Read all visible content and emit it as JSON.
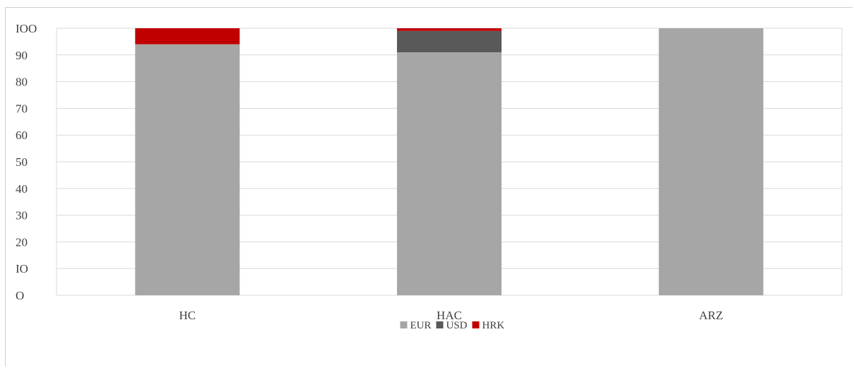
{
  "chart_data": {
    "type": "bar",
    "stacked": true,
    "categories": [
      "HC",
      "HAC",
      "ARZ"
    ],
    "series": [
      {
        "name": "EUR",
        "color": "#a6a6a6",
        "values": [
          94,
          91,
          100
        ]
      },
      {
        "name": "USD",
        "color": "#595959",
        "values": [
          0,
          8,
          0
        ]
      },
      {
        "name": "HRK",
        "color": "#c00000",
        "values": [
          6,
          1,
          0
        ]
      }
    ],
    "ylim": [
      0,
      100
    ],
    "yticks": [
      0,
      10,
      20,
      30,
      40,
      50,
      60,
      70,
      80,
      90,
      100
    ],
    "ytick_labels": [
      "O",
      "IO",
      "20",
      "30",
      "40",
      "50",
      "60",
      "70",
      "80",
      "90",
      "IOO"
    ],
    "grid": true,
    "legend": "bottom-center",
    "title": "",
    "xlabel": "",
    "ylabel": ""
  }
}
